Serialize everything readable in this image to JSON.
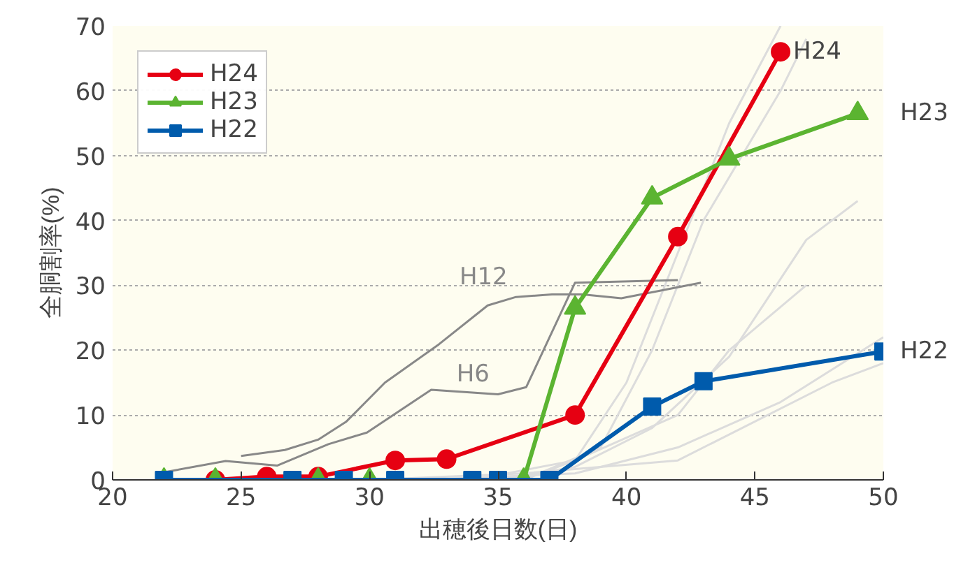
{
  "chart_data": {
    "type": "line",
    "xlabel": "出穂後日数(日)",
    "ylabel": "全胴割率(%)",
    "xlim": [
      20,
      50
    ],
    "ylim": [
      0,
      70
    ],
    "xticks": [
      20,
      25,
      30,
      35,
      40,
      45,
      50
    ],
    "yticks": [
      0,
      10,
      20,
      30,
      40,
      50,
      60,
      70
    ],
    "grid": "y",
    "legend": "top left",
    "line_style": "solid",
    "series": [
      {
        "color": "#dcdcdc",
        "marker": "none",
        "x": [
          36,
          38,
          40,
          42,
          44,
          46
        ],
        "values": [
          0,
          3,
          15,
          35,
          55,
          70
        ]
      },
      {
        "color": "#dcdcdc",
        "marker": "none",
        "x": [
          36,
          39,
          41,
          43,
          46,
          47
        ],
        "values": [
          0,
          5,
          20,
          40,
          60,
          68
        ]
      },
      {
        "color": "#dcdcdc",
        "marker": "none",
        "x": [
          35,
          38,
          41,
          44,
          45,
          47,
          49
        ],
        "values": [
          0,
          2,
          8,
          19,
          25,
          37,
          43
        ]
      },
      {
        "color": "#dcdcdc",
        "marker": "none",
        "x": [
          34,
          38,
          42,
          44,
          47
        ],
        "values": [
          0,
          3,
          10,
          20,
          30
        ]
      },
      {
        "color": "#dcdcdc",
        "marker": "none",
        "x": [
          32,
          38,
          42,
          46,
          50
        ],
        "values": [
          0,
          1,
          5,
          12,
          22
        ]
      },
      {
        "color": "#dcdcdc",
        "marker": "none",
        "x": [
          30,
          36,
          42,
          48,
          50
        ],
        "values": [
          0,
          1,
          3,
          15,
          18
        ]
      },
      {
        "name": "H12",
        "color": "#888888",
        "marker": "none",
        "x": [
          25.0,
          26.7,
          28.0,
          29.1,
          30.6,
          32.7,
          34.6,
          35.7,
          37.1,
          38.3,
          39.8,
          42.9
        ],
        "values": [
          3.7,
          4.6,
          6.2,
          9.0,
          15.0,
          20.9,
          26.9,
          28.2,
          28.6,
          28.6,
          28.0,
          30.4
        ]
      },
      {
        "name": "H6",
        "color": "#888888",
        "marker": "none",
        "x": [
          21.9,
          24.4,
          26.4,
          28.4,
          29.9,
          32.4,
          35.0,
          36.1,
          38.0,
          42.0
        ],
        "values": [
          1.1,
          2.9,
          2.2,
          5.5,
          7.3,
          13.9,
          13.2,
          14.3,
          30.4,
          30.8
        ]
      },
      {
        "name": "H24",
        "color": "#e60012",
        "marker": "circle",
        "x": [
          24,
          26,
          28,
          31,
          33,
          38,
          42,
          46
        ],
        "values": [
          0,
          0.5,
          0.5,
          3,
          3.2,
          10,
          37.5,
          66
        ]
      },
      {
        "name": "H23",
        "color": "#5bb431",
        "marker": "triangle",
        "x": [
          22,
          24,
          28,
          30,
          36,
          38,
          41,
          44,
          49
        ],
        "values": [
          0,
          0,
          0,
          0,
          0,
          26.5,
          43.5,
          49.5,
          56.5
        ]
      },
      {
        "name": "H22",
        "color": "#005bac",
        "marker": "square",
        "x": [
          22,
          27,
          29,
          31,
          34,
          35,
          37,
          41,
          43,
          50
        ],
        "values": [
          0,
          0,
          0,
          0,
          0,
          0,
          0,
          11.3,
          15.2,
          19.8
        ]
      }
    ]
  }
}
